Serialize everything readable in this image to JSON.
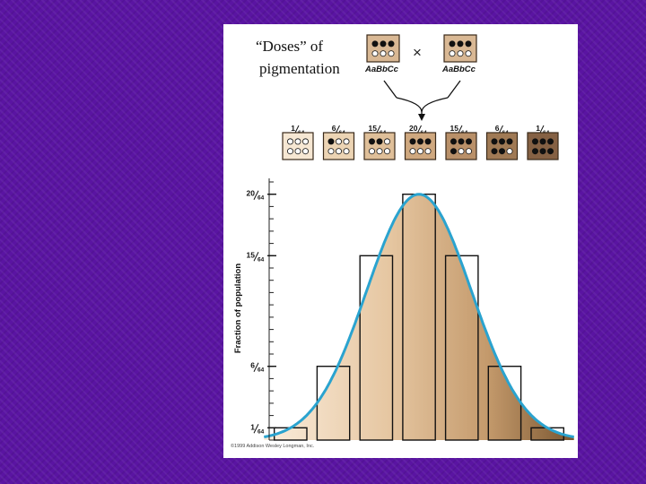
{
  "header": {
    "title_line1": "“Doses” of",
    "title_line2": "pigmentation",
    "cross_symbol": "×",
    "parent_left": {
      "genotype": "AaBbCc",
      "dots": [
        1,
        1,
        1,
        0,
        0,
        0
      ]
    },
    "parent_right": {
      "genotype": "AaBbCc",
      "dots": [
        1,
        1,
        1,
        0,
        0,
        0
      ]
    }
  },
  "phenotypes": [
    {
      "label": "1/64",
      "num": "1",
      "den": "64",
      "dark": 0,
      "shade": "#f6e7d3"
    },
    {
      "label": "6/64",
      "num": "6",
      "den": "64",
      "dark": 1,
      "shade": "#ecd4b4"
    },
    {
      "label": "15/64",
      "num": "15",
      "den": "64",
      "dark": 2,
      "shade": "#dfbf99"
    },
    {
      "label": "20/64",
      "num": "20",
      "den": "64",
      "dark": 3,
      "shade": "#cfa87f"
    },
    {
      "label": "15/64",
      "num": "15",
      "den": "64",
      "dark": 4,
      "shade": "#b99069"
    },
    {
      "label": "6/64",
      "num": "6",
      "den": "64",
      "dark": 5,
      "shade": "#a07a55"
    },
    {
      "label": "1/64",
      "num": "1",
      "den": "64",
      "dark": 6,
      "shade": "#856144"
    }
  ],
  "chart_data": {
    "type": "bar",
    "ylabel": "Fraction of population",
    "categories": [
      "0",
      "1",
      "2",
      "3",
      "4",
      "5",
      "6"
    ],
    "values": [
      0.015625,
      0.09375,
      0.234375,
      0.3125,
      0.234375,
      0.09375,
      0.015625
    ],
    "ylim": [
      0,
      0.328125
    ],
    "ytick_labels": [
      {
        "num": "1",
        "den": "64",
        "value": 0.015625
      },
      {
        "num": "6",
        "den": "64",
        "value": 0.09375
      },
      {
        "num": "15",
        "den": "64",
        "value": 0.234375
      },
      {
        "num": "20",
        "den": "64",
        "value": 0.3125
      }
    ],
    "minor_tick_count": 21,
    "curve": "normal",
    "curve_color": "#2aa3cf",
    "fill_gradient": [
      "#fbeddc",
      "#e6c7a2",
      "#c49a6c",
      "#7a5630"
    ],
    "bar_edge_color": "#111111"
  },
  "copyright": "©1999 Addison Wesley Longman, Inc."
}
